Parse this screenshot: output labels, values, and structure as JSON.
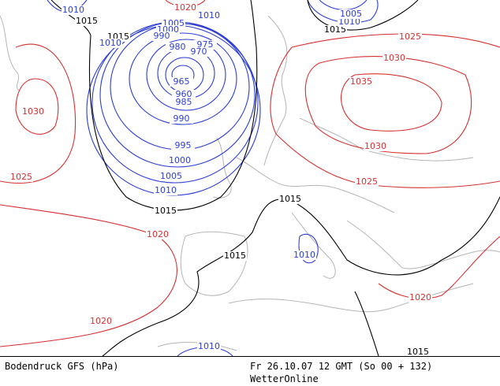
{
  "map": {
    "isobar_labels": [
      {
        "text": "1010",
        "color": "#2d3ed4"
      },
      {
        "text": "1015",
        "color": "#000000"
      },
      {
        "text": "1015",
        "color": "#000000"
      },
      {
        "text": "1020",
        "color": "#d63030"
      },
      {
        "text": "1010",
        "color": "#2d3ed4"
      },
      {
        "text": "1005",
        "color": "#2d3ed4"
      },
      {
        "text": "1000",
        "color": "#2d3ed4"
      },
      {
        "text": "990",
        "color": "#2d3ed4"
      },
      {
        "text": "1010",
        "color": "#2d3ed4"
      },
      {
        "text": "980",
        "color": "#2d3ed4"
      },
      {
        "text": "975",
        "color": "#2d3ed4"
      },
      {
        "text": "970",
        "color": "#2d3ed4"
      },
      {
        "text": "965",
        "color": "#2d3ed4"
      },
      {
        "text": "960",
        "color": "#2d3ed4"
      },
      {
        "text": "985",
        "color": "#2d3ed4"
      },
      {
        "text": "990",
        "color": "#2d3ed4"
      },
      {
        "text": "995",
        "color": "#2d3ed4"
      },
      {
        "text": "1000",
        "color": "#2d3ed4"
      },
      {
        "text": "1005",
        "color": "#2d3ed4"
      },
      {
        "text": "1010",
        "color": "#2d3ed4"
      },
      {
        "text": "1015",
        "color": "#000000"
      },
      {
        "text": "1020",
        "color": "#d63030"
      },
      {
        "text": "1030",
        "color": "#d63030"
      },
      {
        "text": "1025",
        "color": "#d63030"
      },
      {
        "text": "1020",
        "color": "#d63030"
      },
      {
        "text": "1015",
        "color": "#000000"
      },
      {
        "text": "1015",
        "color": "#000000"
      },
      {
        "text": "1010",
        "color": "#2d3ed4"
      },
      {
        "text": "1010",
        "color": "#2d3ed4"
      },
      {
        "text": "1015",
        "color": "#000000"
      },
      {
        "text": "1020",
        "color": "#d63030"
      },
      {
        "text": "1025",
        "color": "#d63030"
      },
      {
        "text": "1030",
        "color": "#d63030"
      },
      {
        "text": "1035",
        "color": "#d63030"
      },
      {
        "text": "1030",
        "color": "#d63030"
      },
      {
        "text": "1025",
        "color": "#d63030"
      },
      {
        "text": "1015",
        "color": "#000000"
      },
      {
        "text": "1010",
        "color": "#2d3ed4"
      },
      {
        "text": "1005",
        "color": "#2d3ed4"
      }
    ]
  },
  "footer": {
    "product": "Bodendruck GFS (hPa)",
    "run": "Fr 26.10.07 12 GMT (So 00 + 132)",
    "source": "WetterOnline"
  }
}
